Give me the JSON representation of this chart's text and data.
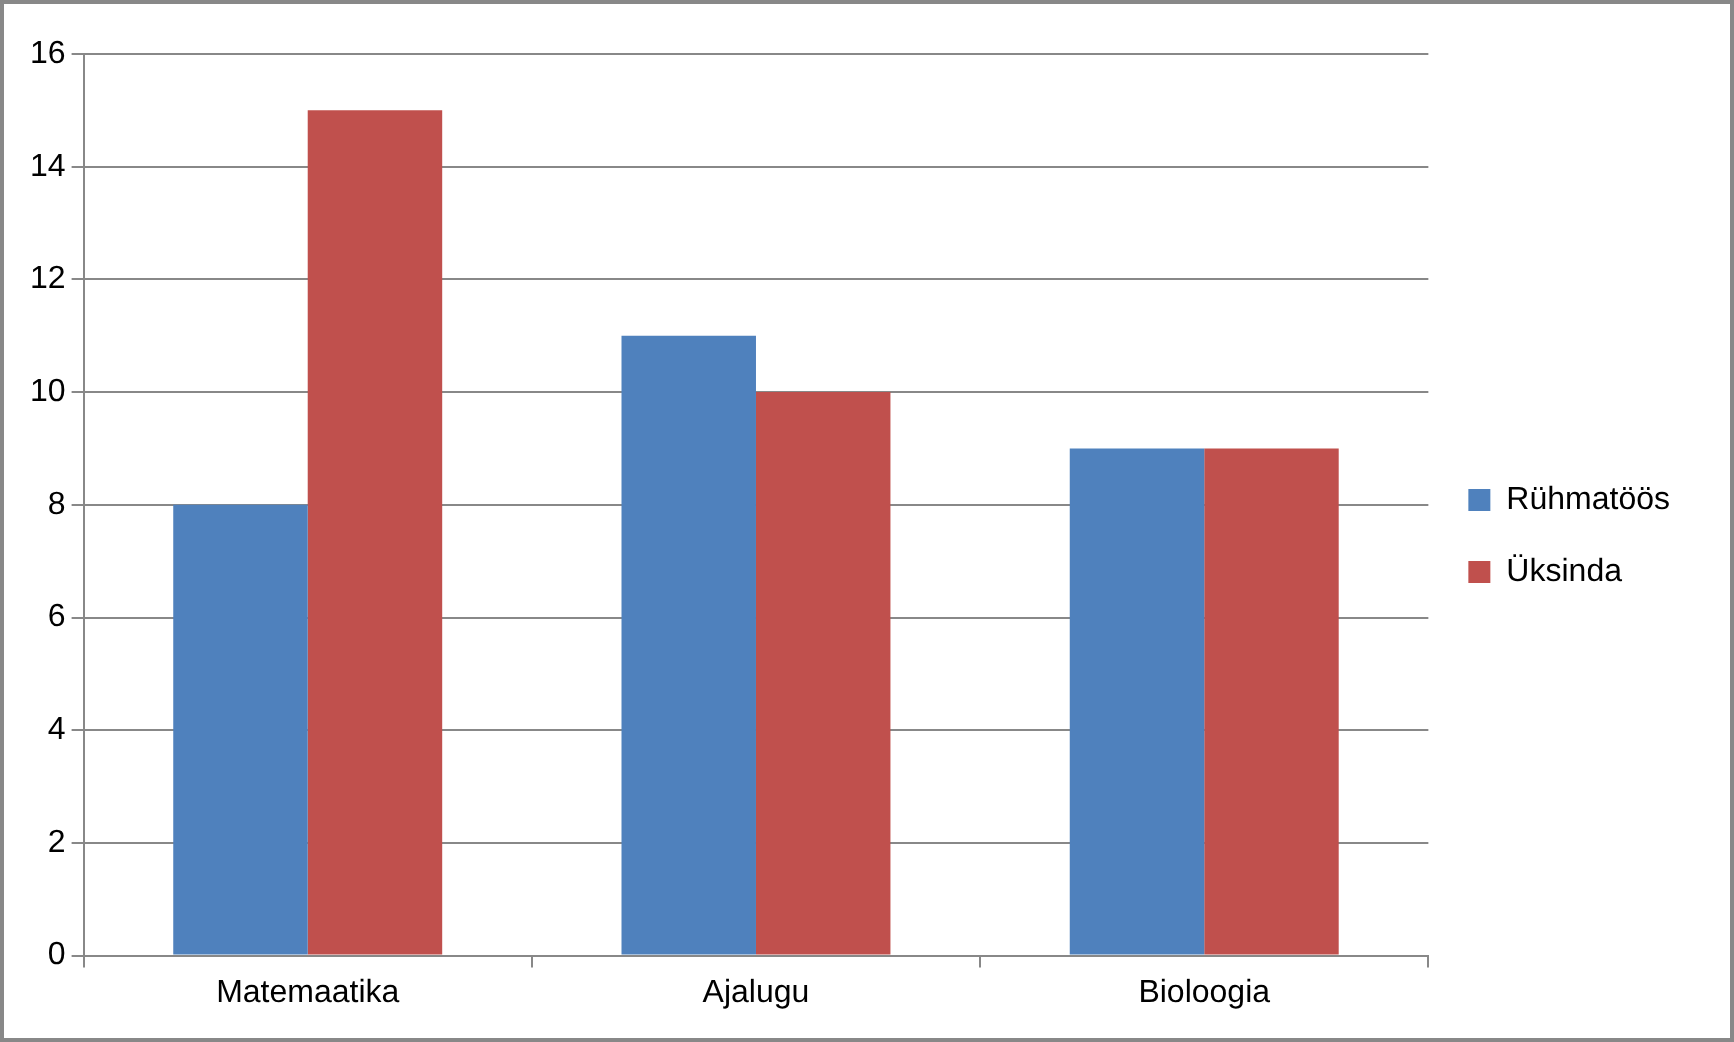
{
  "chart_data": {
    "type": "bar",
    "categories": [
      "Matemaatika",
      "Ajalugu",
      "Bioloogia"
    ],
    "series": [
      {
        "name": "Rühmatöös",
        "color": "#4f81bd",
        "values": [
          8,
          11,
          9
        ]
      },
      {
        "name": "Üksinda",
        "color": "#c0504d",
        "values": [
          15,
          10,
          9
        ]
      }
    ],
    "ylim": [
      0,
      16
    ],
    "yticks": [
      0,
      2,
      4,
      6,
      8,
      10,
      12,
      14,
      16
    ],
    "grid": "y",
    "legend": "right"
  }
}
